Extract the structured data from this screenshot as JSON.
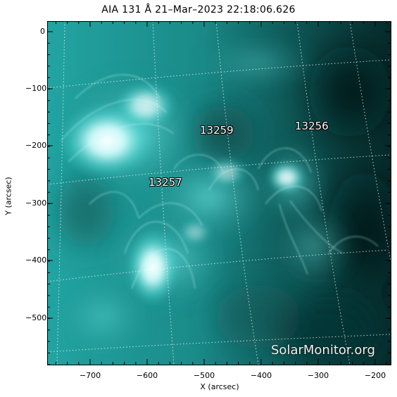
{
  "title": "AIA 131 Å 21–Mar–2023 22:18:06.626",
  "axes": {
    "xlabel": "X (arcsec)",
    "ylabel": "Y (arcsec)",
    "x_ticks": [
      "−700",
      "−600",
      "−500",
      "−400",
      "−300",
      "−200"
    ],
    "y_ticks": [
      "0",
      "−100",
      "−200",
      "−300",
      "−400",
      "−500"
    ]
  },
  "regions": {
    "r13259": "13259",
    "r13256": "13256",
    "r13257": "13257"
  },
  "watermark": "SolarMonitor.org",
  "colors": {
    "bright": "#ffffff",
    "mid": "#2fb5b3",
    "dark": "#062c2c",
    "deep": "#021514"
  }
}
